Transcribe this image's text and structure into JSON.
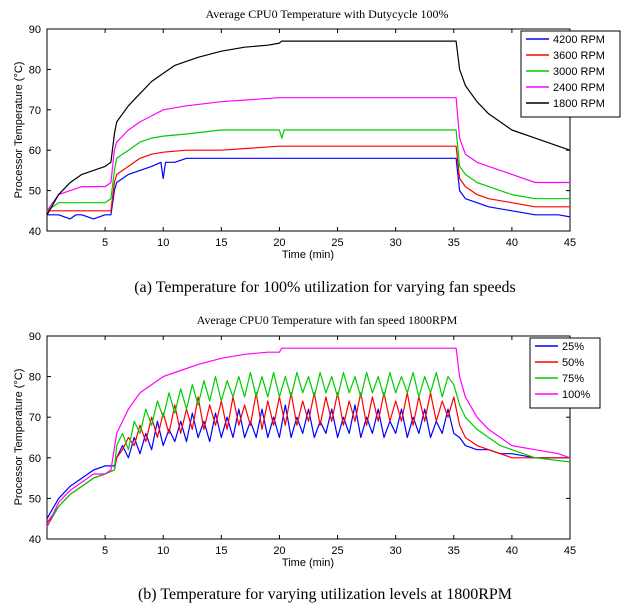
{
  "chart_data": [
    {
      "type": "line",
      "title": "Average CPU0 Temperature with Dutycycle 100%",
      "xlabel": "Time (min)",
      "ylabel": "Processor Temperature (°C)",
      "xlim": [
        0,
        45
      ],
      "ylim": [
        40,
        90
      ],
      "xticks": [
        5,
        10,
        15,
        20,
        25,
        30,
        35,
        40,
        45
      ],
      "yticks": [
        40,
        50,
        60,
        70,
        80,
        90
      ],
      "grid": false,
      "legend_position": "top-right",
      "caption": "(a) Temperature for 100% utilization for varying fan speeds",
      "series": [
        {
          "name": "4200 RPM",
          "color": "#0000ff",
          "x": [
            0,
            1,
            2,
            2.5,
            3,
            4,
            5,
            5.5,
            5.8,
            6,
            7,
            8,
            9,
            9.8,
            10,
            10.2,
            11,
            12,
            15,
            20,
            25,
            30,
            35,
            35.2,
            35.5,
            36,
            37,
            38,
            40,
            42,
            44,
            45
          ],
          "y": [
            44,
            44,
            43,
            44,
            44,
            43,
            44,
            44,
            50,
            52,
            54,
            55,
            56,
            57,
            53,
            57,
            57,
            58,
            58,
            58,
            58,
            58,
            58,
            58,
            50,
            48,
            47,
            46,
            45,
            44,
            44,
            43.5
          ]
        },
        {
          "name": "3600 RPM",
          "color": "#ff0000",
          "x": [
            0,
            1,
            3,
            5,
            5.5,
            5.8,
            6,
            7,
            8,
            9,
            10,
            12,
            15,
            20,
            25,
            30,
            35,
            35.2,
            35.5,
            36,
            37,
            38,
            40,
            42,
            45
          ],
          "y": [
            45,
            45,
            45,
            45,
            45,
            52,
            54,
            56,
            58,
            59,
            59.5,
            60,
            60,
            61,
            61,
            61,
            61,
            61,
            53,
            51,
            49,
            48,
            47,
            46,
            46
          ]
        },
        {
          "name": "3000 RPM",
          "color": "#00cc00",
          "x": [
            0,
            1,
            3,
            5,
            5.5,
            5.8,
            6,
            7,
            8,
            9,
            10,
            12,
            15,
            20,
            20.2,
            20.4,
            25,
            30,
            35,
            35.2,
            35.5,
            36,
            37,
            38,
            40,
            42,
            45
          ],
          "y": [
            45,
            47,
            47,
            47,
            48,
            55,
            58,
            60,
            62,
            63,
            63.5,
            64,
            65,
            65,
            63,
            65,
            65,
            65,
            65,
            65,
            56,
            54,
            52,
            51,
            49,
            48,
            48
          ]
        },
        {
          "name": "2400 RPM",
          "color": "#ff00ff",
          "x": [
            0,
            1,
            3,
            5,
            5.5,
            5.8,
            6,
            7,
            8,
            9,
            10,
            12,
            15,
            20,
            25,
            30,
            35,
            35.2,
            35.5,
            36,
            37,
            38,
            40,
            42,
            45
          ],
          "y": [
            45,
            49,
            51,
            51,
            52,
            60,
            62,
            65,
            67,
            68.5,
            70,
            71,
            72,
            73,
            73,
            73,
            73,
            73,
            63,
            59,
            57,
            56,
            54,
            52,
            52
          ]
        },
        {
          "name": "1800 RPM",
          "color": "#000000",
          "x": [
            0,
            1,
            2,
            3,
            4,
            5,
            5.5,
            5.8,
            6,
            7,
            8,
            9,
            10,
            11,
            12,
            13,
            15,
            17,
            19,
            20,
            20.2,
            22,
            25,
            30,
            35,
            35.2,
            35.5,
            36,
            37,
            38,
            39,
            40,
            42,
            44,
            45
          ],
          "y": [
            44,
            49,
            52,
            54,
            55,
            56,
            57,
            64,
            67,
            71,
            74,
            77,
            79,
            81,
            82,
            83,
            84.5,
            85.5,
            86,
            86.5,
            87,
            87,
            87,
            87,
            87,
            87,
            80,
            76,
            72,
            69,
            67,
            65,
            63,
            61,
            60
          ]
        }
      ]
    },
    {
      "type": "line",
      "title": "Average CPU0 Temperature with fan speed 1800RPM",
      "xlabel": "Time (min)",
      "ylabel": "Processor Temperature (°C)",
      "xlim": [
        0,
        45
      ],
      "ylim": [
        40,
        90
      ],
      "xticks": [
        5,
        10,
        15,
        20,
        25,
        30,
        35,
        40,
        45
      ],
      "yticks": [
        40,
        50,
        60,
        70,
        80,
        90
      ],
      "grid": false,
      "legend_position": "top-right",
      "caption": "(b) Temperature for varying utilization levels at 1800RPM",
      "series": [
        {
          "name": "25%",
          "color": "#0000ff",
          "x": [
            0,
            1,
            2,
            3,
            4,
            5,
            5.8,
            6,
            6.5,
            7,
            7.5,
            8,
            8.5,
            9,
            9.5,
            10,
            10.5,
            11,
            11.5,
            12,
            12.5,
            13,
            13.5,
            14,
            14.5,
            15,
            15.5,
            16,
            16.5,
            17,
            17.5,
            18,
            18.5,
            19,
            19.5,
            20,
            20.5,
            21,
            21.5,
            22,
            22.5,
            23,
            23.5,
            24,
            24.5,
            25,
            25.5,
            26,
            26.5,
            27,
            27.5,
            28,
            28.5,
            29,
            29.5,
            30,
            30.5,
            31,
            31.5,
            32,
            32.5,
            33,
            33.5,
            34,
            34.5,
            35,
            35.5,
            36,
            37,
            38,
            39,
            40,
            42,
            45
          ],
          "y": [
            45,
            50,
            53,
            55,
            57,
            58,
            58,
            60,
            63,
            60,
            65,
            61,
            66,
            62,
            69,
            63,
            67,
            64,
            69,
            64,
            71,
            65,
            69,
            64,
            71,
            65,
            70,
            65,
            72,
            65,
            69,
            65,
            72,
            65,
            70,
            65,
            73,
            65,
            70,
            66,
            72,
            65,
            69,
            66,
            72,
            65,
            70,
            66,
            73,
            65,
            70,
            66,
            72,
            65,
            69,
            66,
            72,
            65,
            70,
            66,
            72,
            65,
            69,
            66,
            72,
            66,
            65,
            63,
            62,
            62,
            61,
            61,
            60,
            60
          ]
        },
        {
          "name": "50%",
          "color": "#ff0000",
          "x": [
            0,
            1,
            2,
            3,
            4,
            5,
            5.8,
            6,
            6.5,
            7,
            7.5,
            8,
            8.5,
            9,
            9.5,
            10,
            10.5,
            11,
            11.5,
            12,
            12.5,
            13,
            13.5,
            14,
            14.5,
            15,
            15.5,
            16,
            16.5,
            17,
            17.5,
            18,
            18.5,
            19,
            19.5,
            20,
            20.5,
            21,
            21.5,
            22,
            22.5,
            23,
            23.5,
            24,
            24.5,
            25,
            25.5,
            26,
            26.5,
            27,
            27.5,
            28,
            28.5,
            29,
            29.5,
            30,
            30.5,
            31,
            31.5,
            32,
            32.5,
            33,
            33.5,
            34,
            34.5,
            35,
            35.5,
            36,
            37,
            38,
            39,
            40,
            42,
            45
          ],
          "y": [
            44,
            48,
            51,
            53,
            55,
            56,
            57,
            60,
            62,
            65,
            63,
            68,
            64,
            70,
            65,
            71,
            66,
            73,
            66,
            72,
            67,
            75,
            67,
            73,
            68,
            74,
            67,
            75,
            68,
            73,
            68,
            76,
            67,
            74,
            68,
            75,
            68,
            76,
            68,
            74,
            69,
            76,
            68,
            75,
            69,
            76,
            68,
            74,
            69,
            76,
            68,
            75,
            69,
            76,
            69,
            74,
            69,
            76,
            68,
            75,
            69,
            76,
            69,
            74,
            70,
            75,
            68,
            65,
            63,
            62,
            61,
            60,
            60,
            60
          ]
        },
        {
          "name": "75%",
          "color": "#00cc00",
          "x": [
            0,
            1,
            2,
            3,
            4,
            5,
            5.8,
            6,
            6.5,
            7,
            7.5,
            8,
            8.5,
            9,
            9.5,
            10,
            10.5,
            11,
            11.5,
            12,
            12.5,
            13,
            13.5,
            14,
            14.5,
            15,
            15.5,
            16,
            16.5,
            17,
            17.5,
            18,
            18.5,
            19,
            19.5,
            20,
            20.5,
            21,
            21.5,
            22,
            22.5,
            23,
            23.5,
            24,
            24.5,
            25,
            25.5,
            26,
            26.5,
            27,
            27.5,
            28,
            28.5,
            29,
            29.5,
            30,
            30.5,
            31,
            31.5,
            32,
            32.5,
            33,
            33.5,
            34,
            34.5,
            35,
            35.5,
            36,
            37,
            38,
            39,
            40,
            42,
            45
          ],
          "y": [
            43,
            48,
            51,
            53,
            55,
            56,
            57,
            63,
            66,
            62,
            69,
            66,
            72,
            68,
            74,
            70,
            76,
            71,
            77,
            72,
            78,
            73,
            79,
            74,
            80,
            74,
            79,
            75,
            80,
            75,
            81,
            75,
            80,
            75,
            81,
            75,
            80,
            75,
            81,
            76,
            80,
            75,
            81,
            76,
            80,
            75,
            81,
            76,
            80,
            75,
            81,
            76,
            80,
            75,
            81,
            76,
            80,
            76,
            81,
            75,
            80,
            76,
            81,
            75,
            80,
            78,
            73,
            70,
            67,
            65,
            63,
            62,
            60,
            59
          ]
        },
        {
          "name": "100%",
          "color": "#ff00ff",
          "x": [
            0,
            1,
            2,
            3,
            4,
            5,
            5.5,
            6,
            7,
            8,
            9,
            10,
            11,
            12,
            13,
            15,
            17,
            19,
            20,
            20.2,
            22,
            25,
            30,
            35,
            35.2,
            35.5,
            36,
            37,
            38,
            39,
            40,
            42,
            44,
            45
          ],
          "y": [
            43,
            49,
            52,
            54,
            56,
            56,
            57,
            66,
            72,
            76,
            78,
            80,
            81,
            82,
            83,
            84.5,
            85.5,
            86,
            86,
            87,
            87,
            87,
            87,
            87,
            87,
            80,
            75,
            70,
            67,
            65,
            63,
            62,
            61,
            60
          ]
        }
      ]
    }
  ]
}
